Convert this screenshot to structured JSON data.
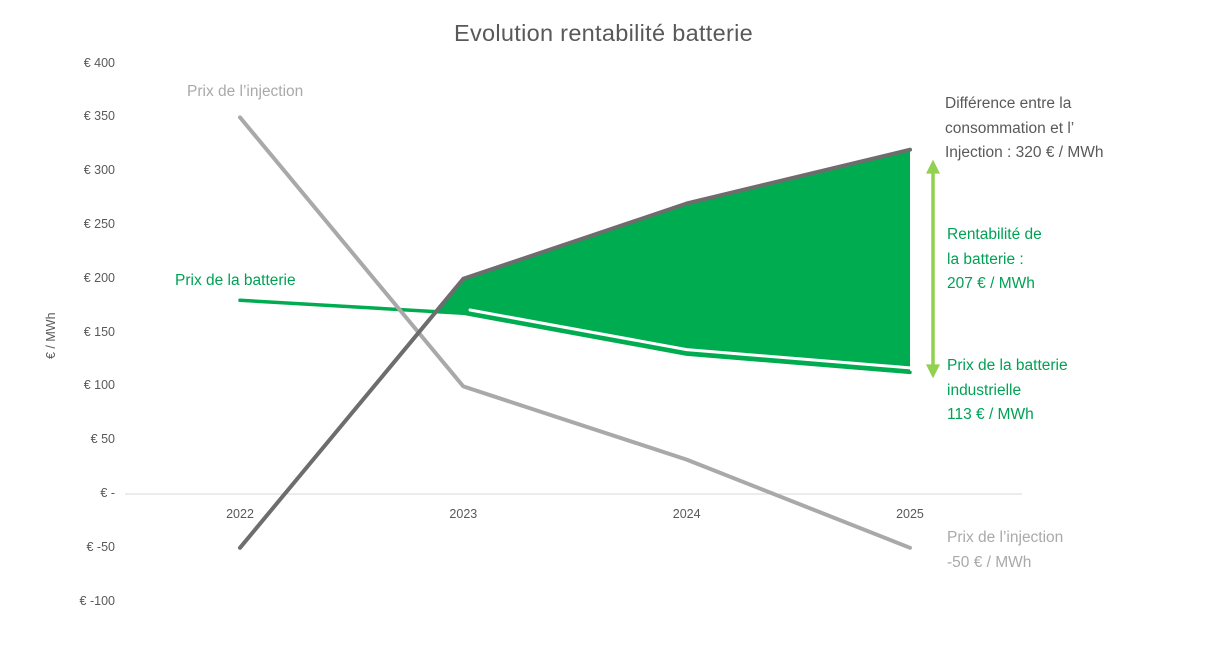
{
  "title": "Evolution rentabilité batterie",
  "y_axis_unit": "€ / MWh",
  "labels": {
    "injection_line": "Prix de l’injection",
    "batterie_line": "Prix de la batterie"
  },
  "annotations": {
    "difference": "Différence entre la\nconsommation et l’\nInjection : 320 € / MWh",
    "rentabilite": "Rentabilité de\nla batterie :\n207 € / MWh",
    "batterie_industrielle": "Prix de la batterie\nindustrielle\n113 € / MWh",
    "injection_final": "Prix de l’injection\n-50 € / MWh"
  },
  "colors": {
    "dark_line": "#6d6d6d",
    "light_line": "#a9a9a9",
    "green": "#00ac50",
    "green_text": "#00a155",
    "arrow_green": "#92d050",
    "gridline": "#d9d9d9",
    "text_dark": "#595959",
    "text_gray": "#a9a9a9"
  },
  "chart_data": {
    "type": "line",
    "title": "Evolution rentabilité batterie",
    "xlabel": "",
    "ylabel": "€ / MWh",
    "categories": [
      "2022",
      "2023",
      "2024",
      "2025"
    ],
    "series": [
      {
        "name": "Prix de l’injection",
        "values": [
          350,
          100,
          32,
          -50
        ],
        "color": "#a9a9a9"
      },
      {
        "name": "Différence entre la consommation et l’injection",
        "values": [
          -50,
          200,
          270,
          320
        ],
        "color": "#6d6d6d"
      },
      {
        "name": "Prix de la batterie",
        "values": [
          180,
          168,
          130,
          113
        ],
        "color": "#00ac50"
      }
    ],
    "fill_between": {
      "upper": "Différence entre la consommation et l’injection",
      "lower": "Prix de la batterie",
      "from_category": "2023",
      "to_category": "2025",
      "color": "#00ac50"
    },
    "y_ticks": [
      {
        "label": "€ 400",
        "value": 400
      },
      {
        "label": "€ 350",
        "value": 350
      },
      {
        "label": "€ 300",
        "value": 300
      },
      {
        "label": "€ 250",
        "value": 250
      },
      {
        "label": "€ 200",
        "value": 200
      },
      {
        "label": "€ 150",
        "value": 150
      },
      {
        "label": "€ 100",
        "value": 100
      },
      {
        "label": "€ 50",
        "value": 50
      },
      {
        "label": "€ -",
        "value": 0
      },
      {
        "label": "€ -50",
        "value": -50
      },
      {
        "label": "€ -100",
        "value": -100
      }
    ],
    "ylim": [
      -100,
      400
    ],
    "grid": "zero-line-only",
    "legend": "none",
    "key_values": {
      "difference_2025": "320 € / MWh",
      "rentabilite": "207 € / MWh",
      "batterie_2025": "113 € / MWh",
      "injection_2025": "-50 € / MWh"
    }
  }
}
